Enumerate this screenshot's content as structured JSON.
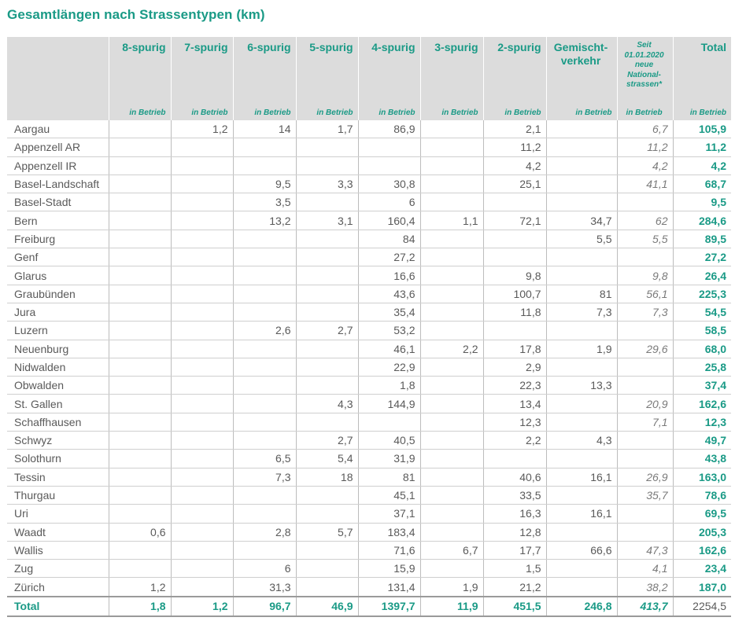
{
  "title": "Gesamtlängen nach Strassentypen (km)",
  "accent_color": "#1a9a86",
  "header_bg": "#dcdcdc",
  "columns": [
    {
      "label_lines": [
        "8-spurig"
      ],
      "sub": "in Betrieb"
    },
    {
      "label_lines": [
        "7-spurig"
      ],
      "sub": "in Betrieb"
    },
    {
      "label_lines": [
        "6-spurig"
      ],
      "sub": "in Betrieb"
    },
    {
      "label_lines": [
        "5-spurig"
      ],
      "sub": "in Betrieb"
    },
    {
      "label_lines": [
        "4-spurig"
      ],
      "sub": "in Betrieb"
    },
    {
      "label_lines": [
        "3-spurig"
      ],
      "sub": "in Betrieb"
    },
    {
      "label_lines": [
        "2-spurig"
      ],
      "sub": "in Betrieb"
    },
    {
      "label_lines": [
        "Gemischt-",
        "verkehr"
      ],
      "sub": "in Betrieb"
    },
    {
      "label_lines": [
        "Seit",
        "01.01.2020",
        "neue",
        "National-",
        "strassen*"
      ],
      "sub": "in Betrieb"
    },
    {
      "label_lines": [
        "Total"
      ],
      "sub": "in Betrieb"
    }
  ],
  "rows": [
    {
      "name": "Aargau",
      "values": [
        "",
        "1,2",
        "14",
        "1,7",
        "86,9",
        "",
        "2,1",
        "",
        "6,7",
        "105,9"
      ]
    },
    {
      "name": "Appenzell AR",
      "values": [
        "",
        "",
        "",
        "",
        "",
        "",
        "11,2",
        "",
        "11,2",
        "11,2"
      ]
    },
    {
      "name": "Appenzell IR",
      "values": [
        "",
        "",
        "",
        "",
        "",
        "",
        "4,2",
        "",
        "4,2",
        "4,2"
      ]
    },
    {
      "name": "Basel-Landschaft",
      "values": [
        "",
        "",
        "9,5",
        "3,3",
        "30,8",
        "",
        "25,1",
        "",
        "41,1",
        "68,7"
      ]
    },
    {
      "name": "Basel-Stadt",
      "values": [
        "",
        "",
        "3,5",
        "",
        "6",
        "",
        "",
        "",
        "",
        "9,5"
      ]
    },
    {
      "name": "Bern",
      "values": [
        "",
        "",
        "13,2",
        "3,1",
        "160,4",
        "1,1",
        "72,1",
        "34,7",
        "62",
        "284,6"
      ]
    },
    {
      "name": "Freiburg",
      "values": [
        "",
        "",
        "",
        "",
        "84",
        "",
        "",
        "5,5",
        "5,5",
        "89,5"
      ]
    },
    {
      "name": "Genf",
      "values": [
        "",
        "",
        "",
        "",
        "27,2",
        "",
        "",
        "",
        "",
        "27,2"
      ]
    },
    {
      "name": "Glarus",
      "values": [
        "",
        "",
        "",
        "",
        "16,6",
        "",
        "9,8",
        "",
        "9,8",
        "26,4"
      ]
    },
    {
      "name": "Graubünden",
      "values": [
        "",
        "",
        "",
        "",
        "43,6",
        "",
        "100,7",
        "81",
        "56,1",
        "225,3"
      ]
    },
    {
      "name": "Jura",
      "values": [
        "",
        "",
        "",
        "",
        "35,4",
        "",
        "11,8",
        "7,3",
        "7,3",
        "54,5"
      ]
    },
    {
      "name": "Luzern",
      "values": [
        "",
        "",
        "2,6",
        "2,7",
        "53,2",
        "",
        "",
        "",
        "",
        "58,5"
      ]
    },
    {
      "name": "Neuenburg",
      "values": [
        "",
        "",
        "",
        "",
        "46,1",
        "2,2",
        "17,8",
        "1,9",
        "29,6",
        "68,0"
      ]
    },
    {
      "name": "Nidwalden",
      "values": [
        "",
        "",
        "",
        "",
        "22,9",
        "",
        "2,9",
        "",
        "",
        "25,8"
      ]
    },
    {
      "name": "Obwalden",
      "values": [
        "",
        "",
        "",
        "",
        "1,8",
        "",
        "22,3",
        "13,3",
        "",
        "37,4"
      ]
    },
    {
      "name": "St. Gallen",
      "values": [
        "",
        "",
        "",
        "4,3",
        "144,9",
        "",
        "13,4",
        "",
        "20,9",
        "162,6"
      ]
    },
    {
      "name": "Schaffhausen",
      "values": [
        "",
        "",
        "",
        "",
        "",
        "",
        "12,3",
        "",
        "7,1",
        "12,3"
      ]
    },
    {
      "name": "Schwyz",
      "values": [
        "",
        "",
        "",
        "2,7",
        "40,5",
        "",
        "2,2",
        "4,3",
        "",
        "49,7"
      ]
    },
    {
      "name": "Solothurn",
      "values": [
        "",
        "",
        "6,5",
        "5,4",
        "31,9",
        "",
        "",
        "",
        "",
        "43,8"
      ]
    },
    {
      "name": "Tessin",
      "values": [
        "",
        "",
        "7,3",
        "18",
        "81",
        "",
        "40,6",
        "16,1",
        "26,9",
        "163,0"
      ]
    },
    {
      "name": "Thurgau",
      "values": [
        "",
        "",
        "",
        "",
        "45,1",
        "",
        "33,5",
        "",
        "35,7",
        "78,6"
      ]
    },
    {
      "name": "Uri",
      "values": [
        "",
        "",
        "",
        "",
        "37,1",
        "",
        "16,3",
        "16,1",
        "",
        "69,5"
      ]
    },
    {
      "name": "Waadt",
      "values": [
        "0,6",
        "",
        "2,8",
        "5,7",
        "183,4",
        "",
        "12,8",
        "",
        "",
        "205,3"
      ]
    },
    {
      "name": "Wallis",
      "values": [
        "",
        "",
        "",
        "",
        "71,6",
        "6,7",
        "17,7",
        "66,6",
        "47,3",
        "162,6"
      ]
    },
    {
      "name": "Zug",
      "values": [
        "",
        "",
        "6",
        "",
        "15,9",
        "",
        "1,5",
        "",
        "4,1",
        "23,4"
      ]
    },
    {
      "name": "Zürich",
      "values": [
        "1,2",
        "",
        "31,3",
        "",
        "131,4",
        "1,9",
        "21,2",
        "",
        "38,2",
        "187,0"
      ]
    }
  ],
  "total": {
    "name": "Total",
    "values": [
      "1,8",
      "1,2",
      "96,7",
      "46,9",
      "1397,7",
      "11,9",
      "451,5",
      "246,8",
      "413,7",
      "2254,5"
    ]
  }
}
